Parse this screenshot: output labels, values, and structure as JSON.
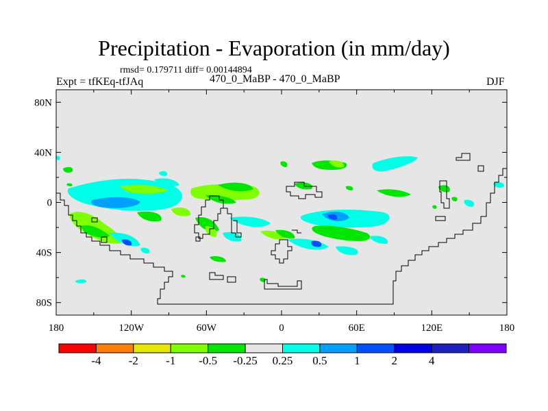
{
  "title": "Precipitation - Evaporation (in mm/day)",
  "stats": "rmsd= 0.179711 diff= 0.00144894",
  "expt_label": "Expt = tfKEq-tfJAq",
  "case_label": "470_0_MaBP - 470_0_MaBP",
  "season": "DJF",
  "map": {
    "projection": "cylindrical equidistant",
    "lon_range": [
      -180,
      180
    ],
    "lat_range": [
      -90,
      90
    ],
    "background": "#e6e6e6",
    "lat_ticks": [
      {
        "value": 80,
        "label": "80N"
      },
      {
        "value": 40,
        "label": "40N"
      },
      {
        "value": 0,
        "label": "0"
      },
      {
        "value": -40,
        "label": "40S"
      },
      {
        "value": -80,
        "label": "80S"
      }
    ],
    "lon_ticks": [
      {
        "value": -180,
        "label": "180"
      },
      {
        "value": -120,
        "label": "120W"
      },
      {
        "value": -60,
        "label": "60W"
      },
      {
        "value": 0,
        "label": "0"
      },
      {
        "value": 60,
        "label": "60E"
      },
      {
        "value": 120,
        "label": "120E"
      },
      {
        "value": 180,
        "label": "180"
      }
    ]
  },
  "colorbar": {
    "colors": [
      "#ff0000",
      "#ff8000",
      "#e6e600",
      "#80ff00",
      "#00e600",
      "#e6e6e6",
      "#00ffe6",
      "#00a0ff",
      "#0050ff",
      "#0000e6",
      "#2020c0",
      "#8000ff"
    ],
    "labels": [
      "-4",
      "-2",
      "-1",
      "-0.5",
      "-0.25",
      "0.25",
      "0.5",
      "1",
      "2",
      "4"
    ]
  }
}
